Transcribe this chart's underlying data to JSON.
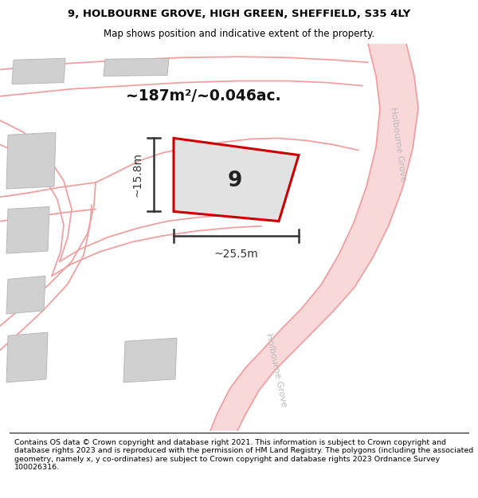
{
  "title_line1": "9, HOLBOURNE GROVE, HIGH GREEN, SHEFFIELD, S35 4LY",
  "title_line2": "Map shows position and indicative extent of the property.",
  "footer_text": "Contains OS data © Crown copyright and database right 2021. This information is subject to Crown copyright and database rights 2023 and is reproduced with the permission of HM Land Registry. The polygons (including the associated geometry, namely x, y co-ordinates) are subject to Crown copyright and database rights 2023 Ordnance Survey 100026316.",
  "area_label": "~187m²/~0.046ac.",
  "property_number": "9",
  "width_label": "~25.5m",
  "height_label": "~15.8m",
  "street_label_upper": "Holbourne Grove",
  "street_label_lower": "Holbourne Grove",
  "road_color": "#f0a0a0",
  "road_fill_color": "#f8d8d8",
  "building_color": "#d0d0d0",
  "building_edge_color": "#b8b8b8",
  "plot_outline_color": "#cc0000",
  "dim_color": "#333333",
  "map_bg": "#f0eeee"
}
